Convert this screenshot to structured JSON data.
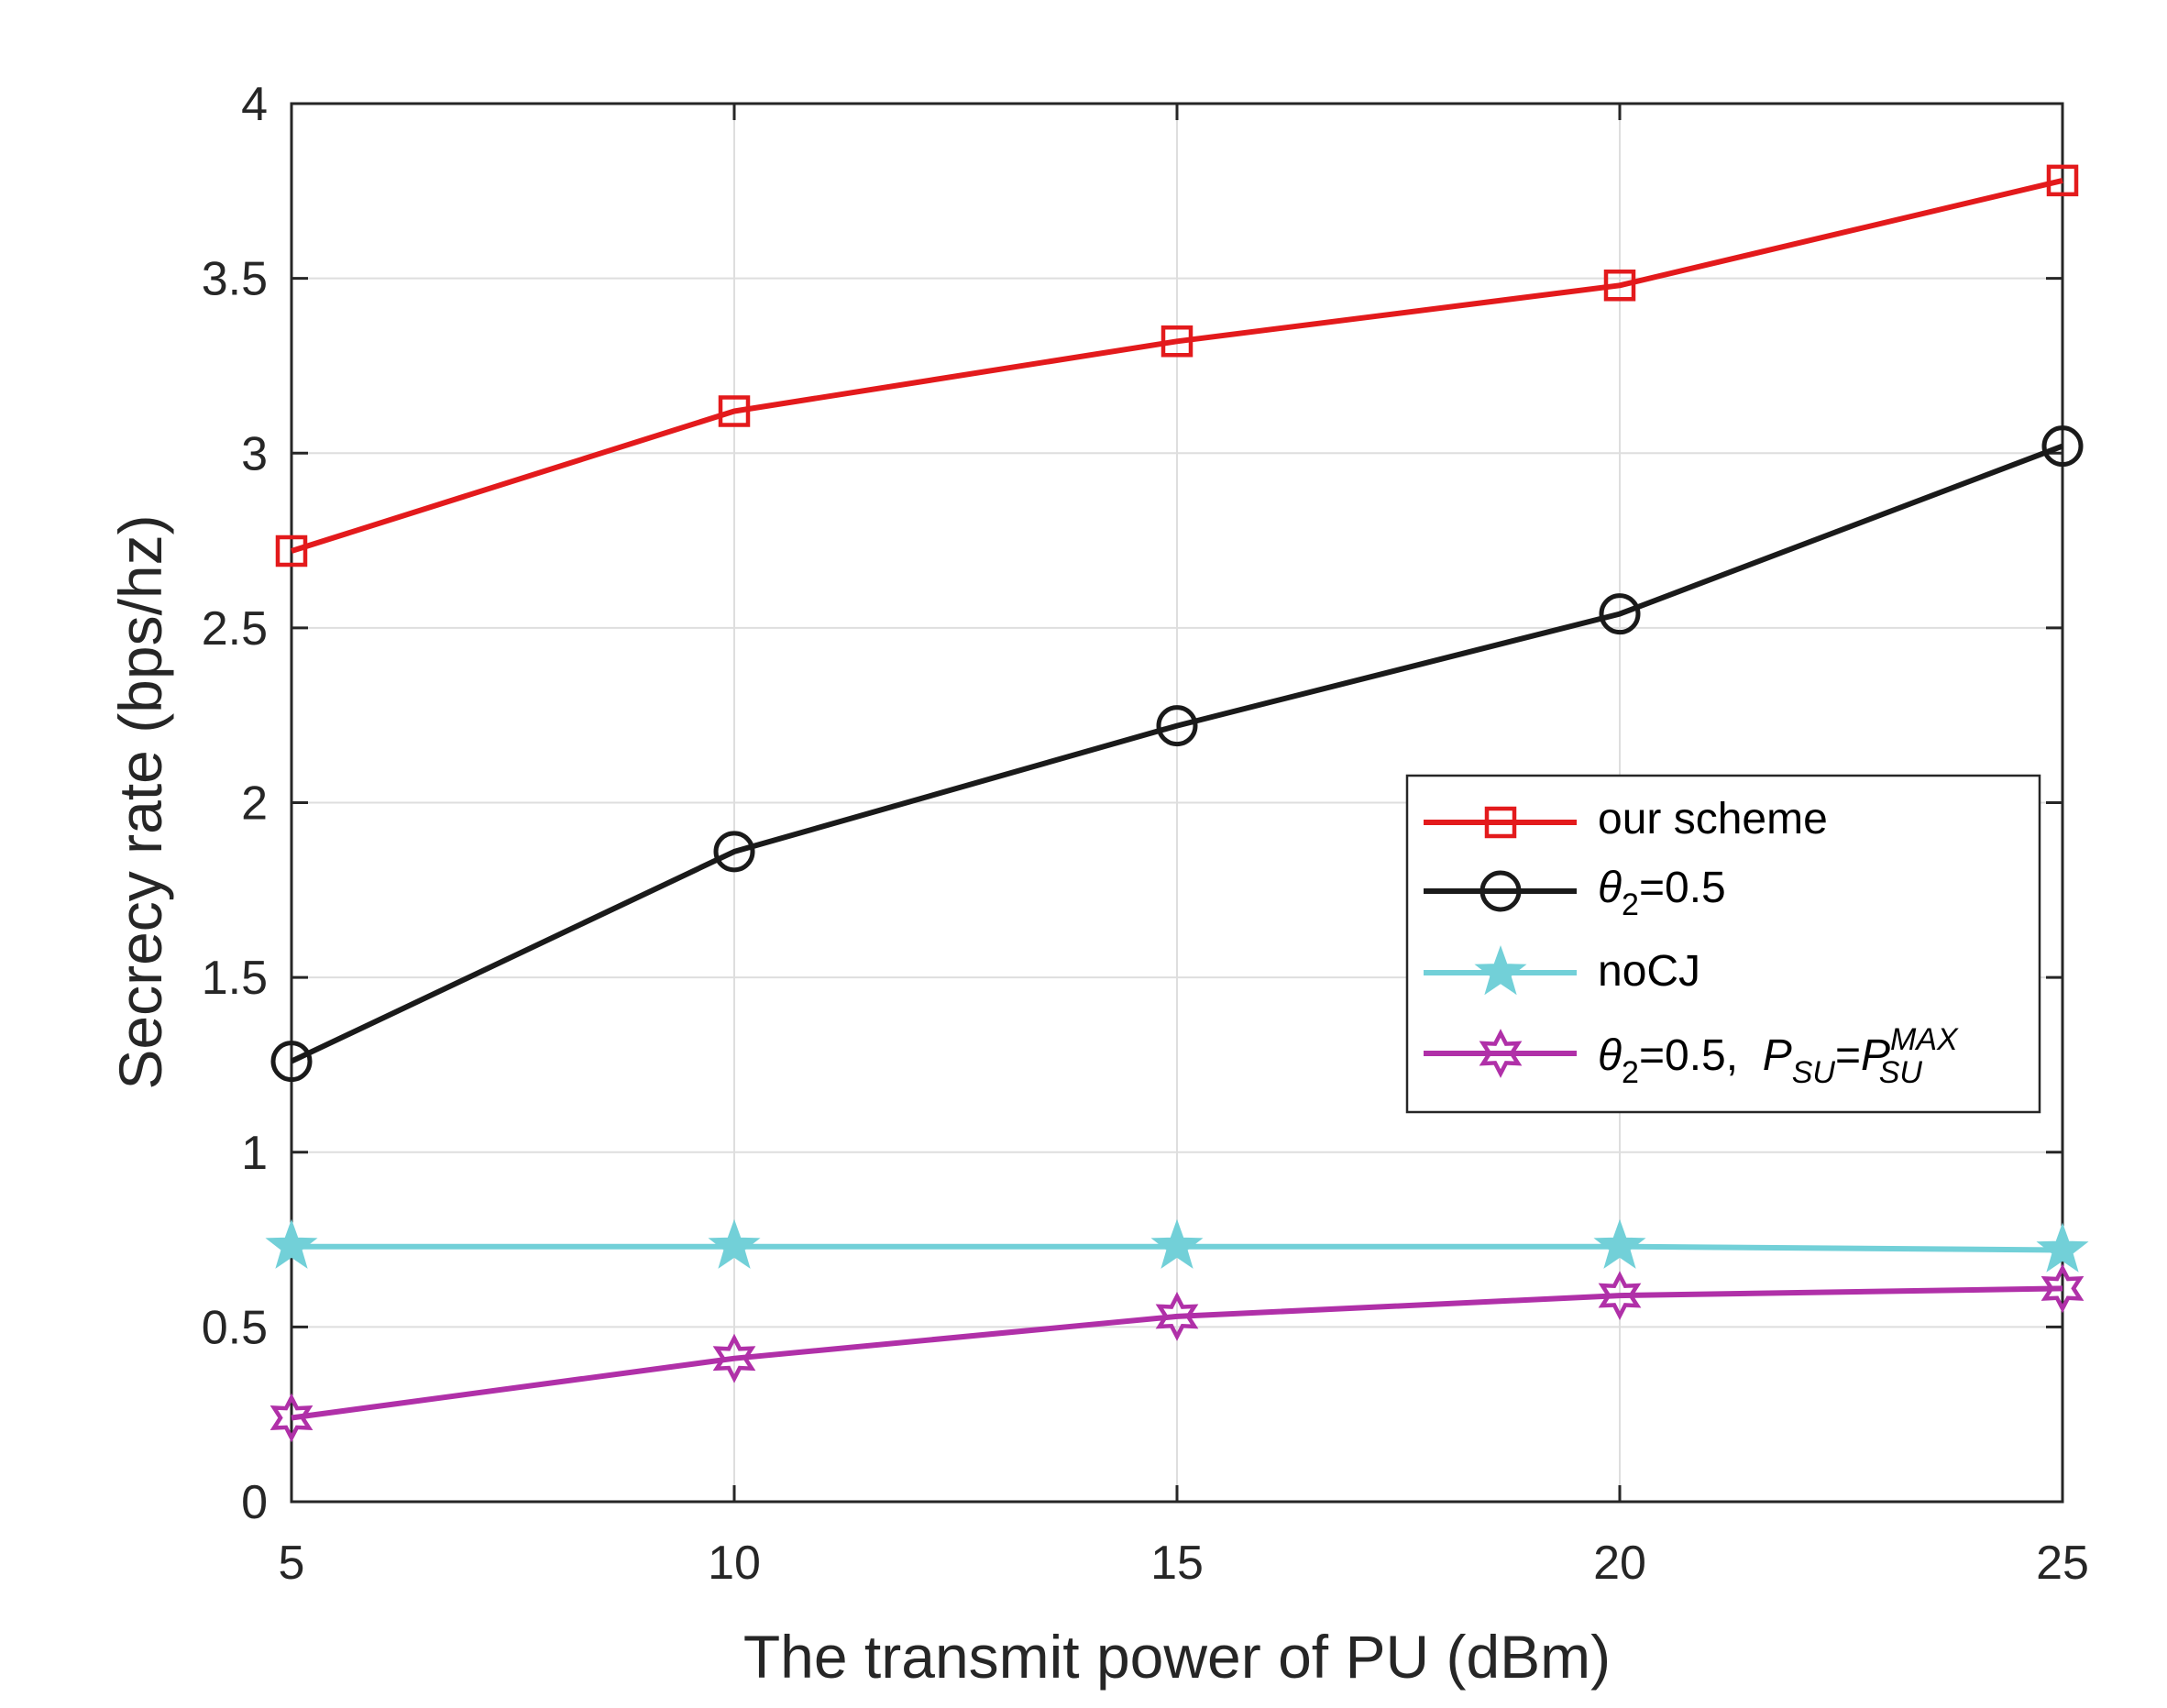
{
  "chart_data": {
    "type": "line",
    "title": "",
    "xlabel": "The transmit power of PU (dBm)",
    "ylabel": "Secrecy rate (bps/hz)",
    "xlim": [
      5,
      25
    ],
    "ylim": [
      0,
      4
    ],
    "xticks": [
      5,
      10,
      15,
      20,
      25
    ],
    "xtick_labels": [
      "5",
      "10",
      "15",
      "20",
      "25"
    ],
    "yticks": [
      0,
      0.5,
      1,
      1.5,
      2,
      2.5,
      3,
      3.5,
      4
    ],
    "ytick_labels": [
      "0",
      "0.5",
      "1",
      "1.5",
      "2",
      "2.5",
      "3",
      "3.5",
      "4"
    ],
    "grid": true,
    "legend_position": "center-right",
    "x": [
      5,
      10,
      15,
      20,
      25
    ],
    "series": [
      {
        "name": "our scheme",
        "legend": {
          "base": "our scheme"
        },
        "marker": "square",
        "color": "#e31a1c",
        "values": [
          2.72,
          3.12,
          3.32,
          3.48,
          3.78
        ]
      },
      {
        "name": "θ2=0.5",
        "legend": {
          "base": "θ",
          "sub": "2",
          "tail": "=0.5"
        },
        "marker": "circle",
        "color": "#1a1a1a",
        "values": [
          1.26,
          1.86,
          2.22,
          2.54,
          3.02
        ]
      },
      {
        "name": "noCJ",
        "legend": {
          "base": "noCJ"
        },
        "marker": "pentagram",
        "color": "#72d0d8",
        "values": [
          0.73,
          0.73,
          0.73,
          0.73,
          0.72
        ]
      },
      {
        "name": "θ2=0.5, PSU=PSU MAX",
        "legend": {
          "base": "θ",
          "sub": "2",
          "tail": "=0.5,  ",
          "p1": "P",
          "p1sub": "SU",
          "eq": "=",
          "p2": "P",
          "p2sub": "SU",
          "p2sup": "MAX"
        },
        "marker": "hexagram",
        "color": "#b030a8",
        "values": [
          0.24,
          0.41,
          0.53,
          0.59,
          0.61
        ]
      }
    ]
  }
}
